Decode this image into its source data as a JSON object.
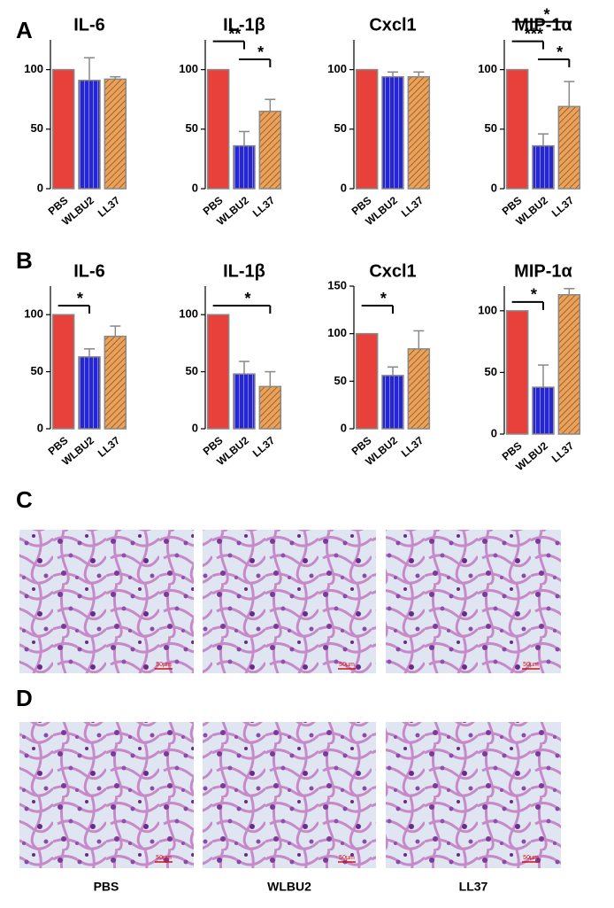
{
  "chart_data": [
    {
      "type": "bar",
      "title": "IL-6",
      "categories": [
        "PBS",
        "WLBU2",
        "LL37"
      ],
      "values": [
        100,
        91,
        92
      ],
      "errors": [
        0,
        19,
        2
      ],
      "colors": [
        "#e8413c",
        "#2424d8",
        "#f0a050"
      ],
      "fill_styles": [
        "solid",
        "vertical",
        "diagonal"
      ],
      "ylim": [
        0,
        125
      ],
      "yticks": [
        0,
        50,
        100
      ],
      "annotations": []
    },
    {
      "type": "bar",
      "title": "IL-1β",
      "categories": [
        "PBS",
        "WLBU2",
        "LL37"
      ],
      "values": [
        100,
        36,
        65
      ],
      "errors": [
        0,
        12,
        10
      ],
      "colors": [
        "#e8413c",
        "#2424d8",
        "#f0a050"
      ],
      "fill_styles": [
        "solid",
        "vertical",
        "diagonal"
      ],
      "ylim": [
        0,
        125
      ],
      "yticks": [
        0,
        50,
        100
      ],
      "annotations": [
        {
          "label": "*",
          "between": [
            "WLBU2",
            "LL37"
          ]
        },
        {
          "label": "**",
          "between": [
            "PBS",
            "WLBU2"
          ]
        }
      ]
    },
    {
      "type": "bar",
      "title": "Cxcl1",
      "categories": [
        "PBS",
        "WLBU2",
        "LL37"
      ],
      "values": [
        100,
        94,
        94
      ],
      "errors": [
        0,
        4,
        4
      ],
      "colors": [
        "#e8413c",
        "#2424d8",
        "#f0a050"
      ],
      "fill_styles": [
        "solid",
        "vertical",
        "diagonal"
      ],
      "ylim": [
        0,
        125
      ],
      "yticks": [
        0,
        50,
        100
      ],
      "annotations": []
    },
    {
      "type": "bar",
      "title": "MIP-1α",
      "categories": [
        "PBS",
        "WLBU2",
        "LL37"
      ],
      "values": [
        100,
        36,
        69
      ],
      "errors": [
        0,
        10,
        21
      ],
      "colors": [
        "#e8413c",
        "#2424d8",
        "#f0a050"
      ],
      "fill_styles": [
        "solid",
        "vertical",
        "diagonal"
      ],
      "ylim": [
        0,
        125
      ],
      "yticks": [
        0,
        50,
        100
      ],
      "annotations": [
        {
          "label": "*",
          "between": [
            "WLBU2",
            "LL37"
          ]
        },
        {
          "label": "***",
          "between": [
            "PBS",
            "WLBU2"
          ]
        },
        {
          "label": "*",
          "between": [
            "PBS",
            "LL37"
          ]
        }
      ]
    },
    {
      "type": "bar",
      "title": "IL-6",
      "categories": [
        "PBS",
        "WLBU2",
        "LL37"
      ],
      "values": [
        100,
        63,
        81
      ],
      "errors": [
        0,
        7,
        9
      ],
      "colors": [
        "#e8413c",
        "#2424d8",
        "#f0a050"
      ],
      "fill_styles": [
        "solid",
        "vertical",
        "diagonal"
      ],
      "ylim": [
        0,
        125
      ],
      "yticks": [
        0,
        50,
        100
      ],
      "annotations": [
        {
          "label": "*",
          "between": [
            "PBS",
            "WLBU2"
          ]
        }
      ]
    },
    {
      "type": "bar",
      "title": "IL-1β",
      "categories": [
        "PBS",
        "WLBU2",
        "LL37"
      ],
      "values": [
        100,
        48,
        37
      ],
      "errors": [
        0,
        11,
        13
      ],
      "colors": [
        "#e8413c",
        "#2424d8",
        "#f0a050"
      ],
      "fill_styles": [
        "solid",
        "vertical",
        "diagonal"
      ],
      "ylim": [
        0,
        125
      ],
      "yticks": [
        0,
        50,
        100
      ],
      "annotations": [
        {
          "label": "*",
          "between": [
            "PBS",
            "LL37"
          ]
        }
      ]
    },
    {
      "type": "bar",
      "title": "Cxcl1",
      "categories": [
        "PBS",
        "WLBU2",
        "LL37"
      ],
      "values": [
        100,
        56,
        84
      ],
      "errors": [
        0,
        9,
        19
      ],
      "colors": [
        "#e8413c",
        "#2424d8",
        "#f0a050"
      ],
      "fill_styles": [
        "solid",
        "vertical",
        "diagonal"
      ],
      "ylim": [
        0,
        150
      ],
      "yticks": [
        0,
        50,
        100,
        150
      ],
      "annotations": [
        {
          "label": "*",
          "between": [
            "PBS",
            "WLBU2"
          ]
        }
      ]
    },
    {
      "type": "bar",
      "title": "MIP-1α",
      "categories": [
        "PBS",
        "WLBU2",
        "LL37"
      ],
      "values": [
        100,
        38,
        113
      ],
      "errors": [
        0,
        18,
        5
      ],
      "colors": [
        "#e8413c",
        "#2424d8",
        "#f0a050"
      ],
      "fill_styles": [
        "solid",
        "vertical",
        "diagonal"
      ],
      "ylim": [
        0,
        120
      ],
      "yticks": [
        0,
        50,
        100
      ],
      "annotations": [
        {
          "label": "*",
          "between": [
            "PBS",
            "WLBU2"
          ]
        }
      ]
    }
  ],
  "panel_labels": [
    "A",
    "B",
    "C",
    "D"
  ],
  "image_labels": [
    "PBS",
    "WLBU2",
    "LL37"
  ],
  "scale_bar": "50µm"
}
